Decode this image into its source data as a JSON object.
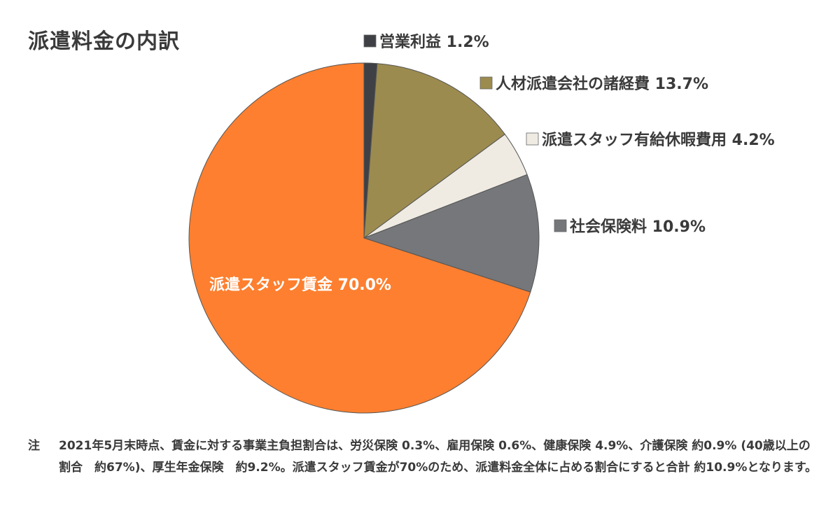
{
  "chart_data": {
    "type": "pie",
    "title": "派遣料金の内訳",
    "slices": [
      {
        "name": "営業利益",
        "value": 1.2,
        "label": "営業利益 1.2%",
        "color": "#3f4046"
      },
      {
        "name": "人材派遣会社の諸経費",
        "value": 13.7,
        "label": "人材派遣会社の諸経費 13.7%",
        "color": "#9c8b4f"
      },
      {
        "name": "派遣スタッフ有給休暇費用",
        "value": 4.2,
        "label": "派遣スタッフ有給休暇費用 4.2%",
        "color": "#efebe3"
      },
      {
        "name": "社会保険料",
        "value": 10.9,
        "label": "社会保険料 10.9%",
        "color": "#75777a"
      },
      {
        "name": "派遣スタッフ賃金",
        "value": 70.0,
        "label": "派遣スタッフ賃金 70.0%",
        "color": "#fd7f2f"
      }
    ]
  },
  "note": {
    "mark": "注",
    "text": "2021年5月末時点、賃金に対する事業主負担割合は、労災保険 0.3%、雇用保険 0.6%、健康保険 4.9%、介護保険 約0.9% (40歳以上の割合　約67%)、厚生年金保険　約9.2%。派遣スタッフ賃金が70%のため、派遣料金全体に占める割合にすると合計 約10.9%となります。"
  }
}
